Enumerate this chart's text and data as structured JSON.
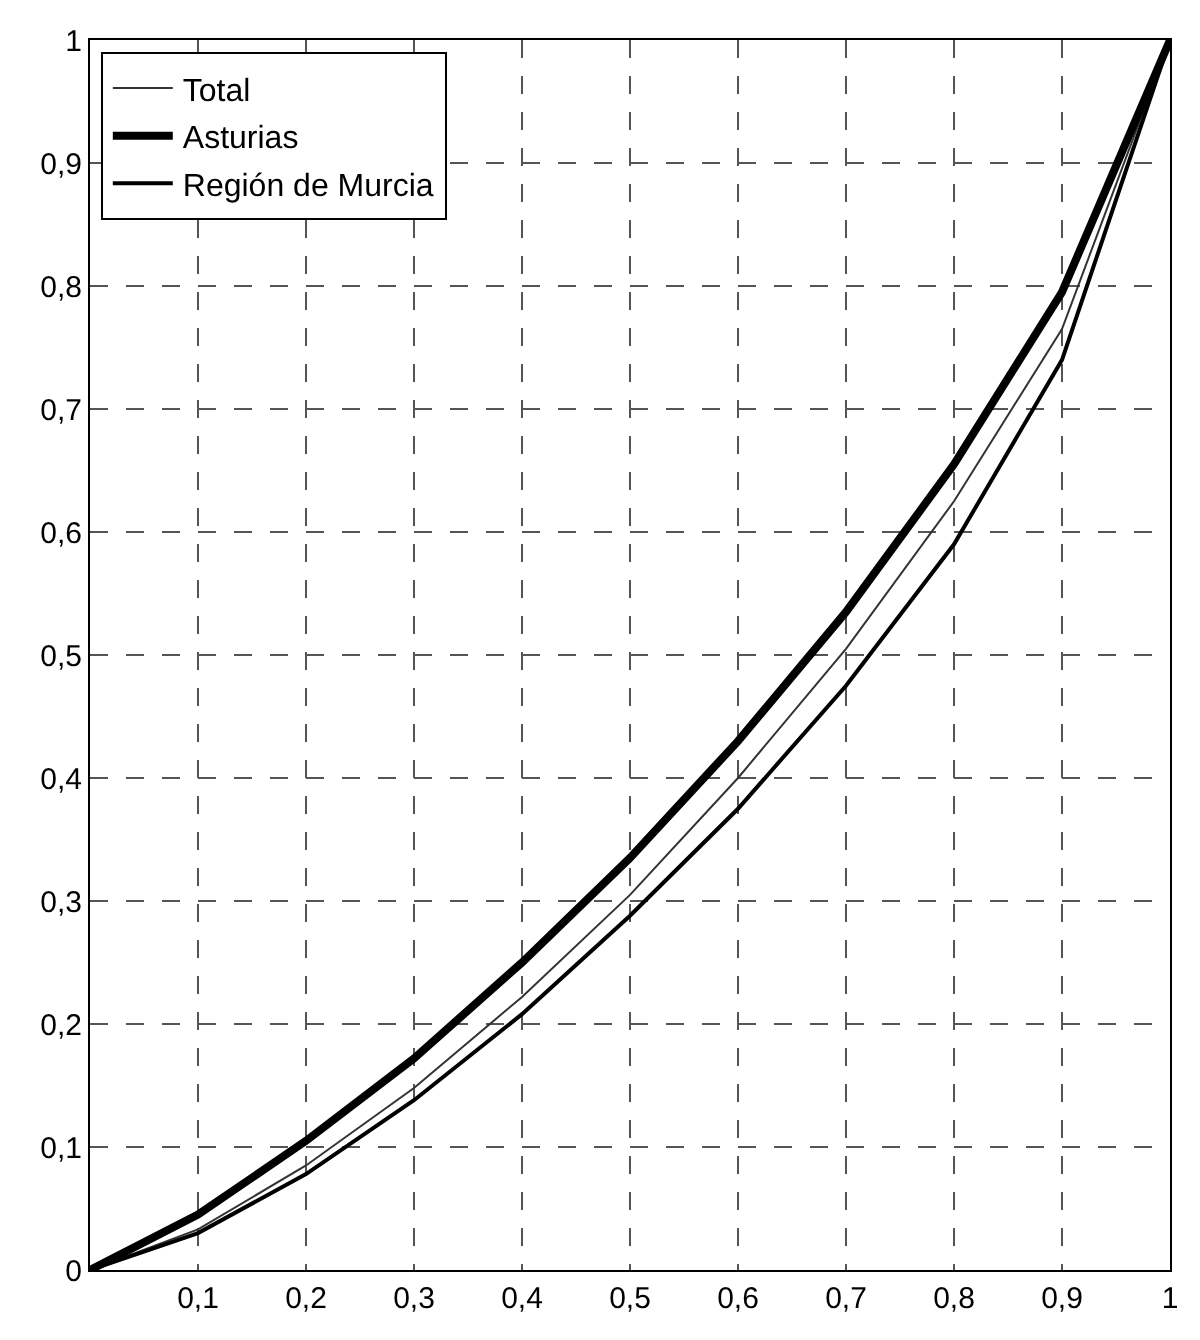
{
  "chart_data": {
    "type": "line",
    "x": [
      0,
      0.1,
      0.2,
      0.3,
      0.4,
      0.5,
      0.6,
      0.7,
      0.8,
      0.9,
      1
    ],
    "series": [
      {
        "name": "Total",
        "color": "#333333",
        "values": [
          0,
          0.033,
          0.085,
          0.148,
          0.222,
          0.305,
          0.4,
          0.505,
          0.625,
          0.765,
          1
        ]
      },
      {
        "name": "Asturias",
        "color": "#000000",
        "values": [
          0,
          0.045,
          0.105,
          0.172,
          0.25,
          0.335,
          0.43,
          0.535,
          0.655,
          0.795,
          1
        ]
      },
      {
        "name": "Región de Murcia",
        "color": "#000000",
        "values": [
          0,
          0.03,
          0.078,
          0.138,
          0.208,
          0.288,
          0.375,
          0.475,
          0.59,
          0.74,
          1
        ]
      }
    ],
    "xlim": [
      0,
      1
    ],
    "xticks": [
      {
        "value": 0,
        "label": null
      },
      {
        "value": 0.1,
        "label": "0,1"
      },
      {
        "value": 0.2,
        "label": "0,2"
      },
      {
        "value": 0.3,
        "label": "0,3"
      },
      {
        "value": 0.4,
        "label": "0,4"
      },
      {
        "value": 0.5,
        "label": "0,5"
      },
      {
        "value": 0.6,
        "label": "0,6"
      },
      {
        "value": 0.7,
        "label": "0,7"
      },
      {
        "value": 0.8,
        "label": "0,8"
      },
      {
        "value": 0.9,
        "label": "0,9"
      },
      1
    ],
    "ylim": [
      0,
      1
    ],
    "yticks": [
      0,
      {
        "value": 0.1,
        "label": "0,1"
      },
      {
        "value": 0.2,
        "label": "0,2"
      },
      {
        "value": 0.3,
        "label": "0,3"
      },
      {
        "value": 0.4,
        "label": "0,4"
      },
      {
        "value": 0.5,
        "label": "0,5"
      },
      {
        "value": 0.6,
        "label": "0,6"
      },
      {
        "value": 0.7,
        "label": "0,7"
      },
      {
        "value": 0.8,
        "label": "0,8"
      },
      {
        "value": 0.9,
        "label": "0,9"
      },
      1
    ],
    "grid": true,
    "legend": "top left",
    "marker": "none",
    "line_style": "solid"
  }
}
